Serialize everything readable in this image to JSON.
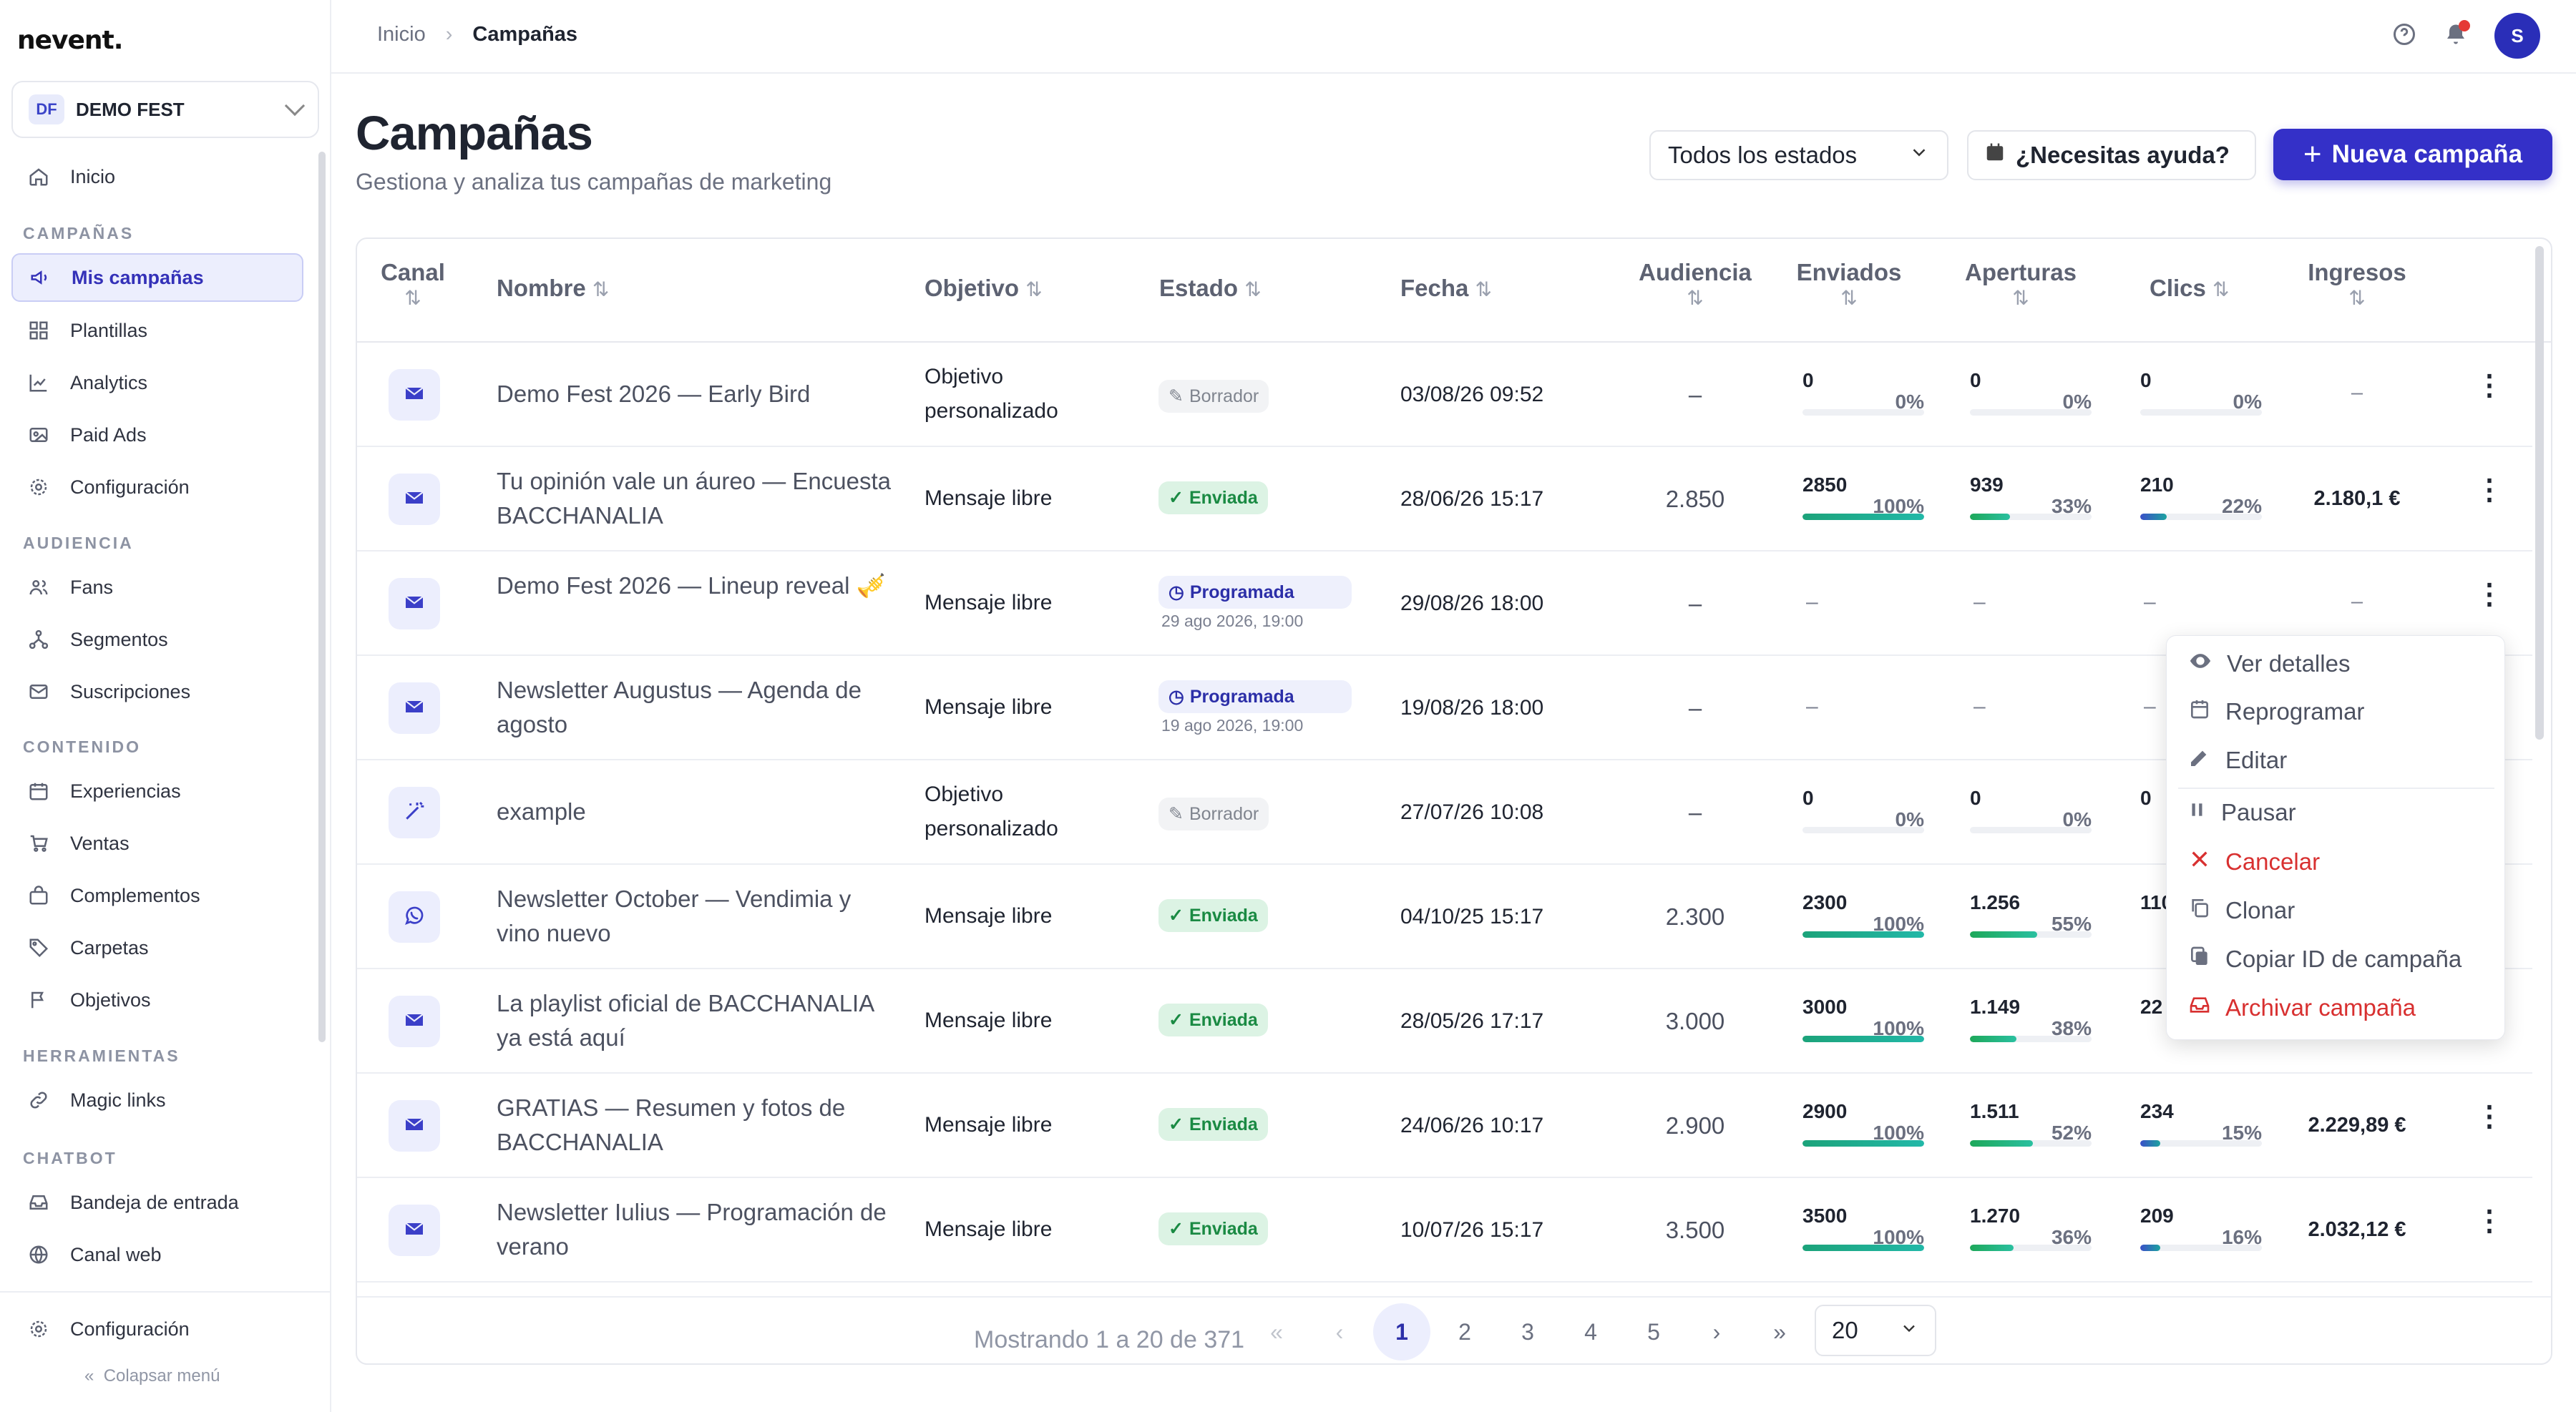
{
  "app": {
    "logo": "nevent."
  },
  "org": {
    "badge": "DF",
    "name": "DEMO FEST"
  },
  "sidebar": {
    "home": "Inicio",
    "sections": [
      "CAMPAÑAS",
      "AUDIENCIA",
      "CONTENIDO",
      "HERRAMIENTAS",
      "CHATBOT"
    ],
    "campaigns": [
      "Mis campañas",
      "Plantillas",
      "Analytics",
      "Paid Ads",
      "Configuración"
    ],
    "audience": [
      "Fans",
      "Segmentos",
      "Suscripciones"
    ],
    "content": [
      "Experiencias",
      "Ventas",
      "Complementos",
      "Carpetas",
      "Objetivos"
    ],
    "tools": [
      "Magic links"
    ],
    "chatbot": [
      "Bandeja de entrada",
      "Canal web"
    ],
    "bottom_config": "Configuración",
    "collapse": "Colapsar menú"
  },
  "breadcrumb": {
    "home": "Inicio",
    "current": "Campañas"
  },
  "header": {
    "title": "Campañas",
    "subtitle": "Gestiona y analiza tus campañas de marketing",
    "filter": "Todos los estados",
    "help": "¿Necesitas ayuda?",
    "new": "Nueva campaña",
    "avatar": "S"
  },
  "columns": [
    "Canal",
    "Nombre",
    "Objetivo",
    "Estado",
    "Fecha",
    "Audiencia",
    "Enviados",
    "Aperturas",
    "Clics",
    "Ingresos"
  ],
  "rows": [
    {
      "channel": "email",
      "name": "Demo Fest 2026 — Early Bird",
      "objective": "Objetivo personalizado",
      "status": "Borrador",
      "date": "03/08/26 09:52",
      "audience": "–",
      "sent": "0",
      "sent_pct": "0%",
      "sent_f": 0,
      "opens": "0",
      "opens_pct": "0%",
      "opens_f": 0,
      "clicks": "0",
      "clicks_pct": "0%",
      "clicks_f": 0,
      "revenue": "–"
    },
    {
      "channel": "email",
      "name": "Tu opinión vale un áureo — Encuesta BACCHANALIA",
      "objective": "Mensaje libre",
      "status": "Enviada",
      "date": "28/06/26 15:17",
      "audience": "2.850",
      "sent": "2850",
      "sent_pct": "100%",
      "sent_f": 1,
      "opens": "939",
      "opens_pct": "33%",
      "opens_f": 0.33,
      "clicks": "210",
      "clicks_pct": "22%",
      "clicks_f": 0.22,
      "revenue": "2.180,1 €"
    },
    {
      "channel": "email",
      "name": "Demo Fest 2026 — Lineup reveal 🎺",
      "objective": "Mensaje libre",
      "status": "Programada",
      "scheduled": "29 ago 2026, 19:00",
      "date": "29/08/26 18:00",
      "audience": "–",
      "sent": "–",
      "opens": "–",
      "clicks": "–",
      "revenue": "–"
    },
    {
      "channel": "email",
      "name": "Newsletter Augustus — Agenda de agosto",
      "objective": "Mensaje libre",
      "status": "Programada",
      "scheduled": "19 ago 2026, 19:00",
      "date": "19/08/26 18:00",
      "audience": "–",
      "sent": "–",
      "opens": "–",
      "clicks": "–",
      "revenue": ""
    },
    {
      "channel": "magic",
      "name": "example",
      "objective": "Objetivo personalizado",
      "status": "Borrador",
      "date": "27/07/26 10:08",
      "audience": "–",
      "sent": "0",
      "sent_pct": "0%",
      "sent_f": 0,
      "opens": "0",
      "opens_pct": "0%",
      "opens_f": 0,
      "clicks": "0",
      "revenue": ""
    },
    {
      "channel": "whatsapp",
      "name": "Newsletter October — Vendimia y vino nuevo",
      "objective": "Mensaje libre",
      "status": "Enviada",
      "date": "04/10/25 15:17",
      "audience": "2.300",
      "sent": "2300",
      "sent_pct": "100%",
      "sent_f": 1,
      "opens": "1.256",
      "opens_pct": "55%",
      "opens_f": 0.55,
      "clicks": "110",
      "revenue": ""
    },
    {
      "channel": "email",
      "name": "La playlist oficial de BACCHANALIA ya está aquí",
      "objective": "Mensaje libre",
      "status": "Enviada",
      "date": "28/05/26 17:17",
      "audience": "3.000",
      "sent": "3000",
      "sent_pct": "100%",
      "sent_f": 1,
      "opens": "1.149",
      "opens_pct": "38%",
      "opens_f": 0.38,
      "clicks": "22",
      "revenue": ""
    },
    {
      "channel": "email",
      "name": "GRATIAS — Resumen y fotos de BACCHANALIA",
      "objective": "Mensaje libre",
      "status": "Enviada",
      "date": "24/06/26 10:17",
      "audience": "2.900",
      "sent": "2900",
      "sent_pct": "100%",
      "sent_f": 1,
      "opens": "1.511",
      "opens_pct": "52%",
      "opens_f": 0.52,
      "clicks": "234",
      "clicks_pct": "15%",
      "clicks_f": 0.15,
      "revenue": "2.229,89 €"
    },
    {
      "channel": "email",
      "name": "Newsletter Iulius — Programación de verano",
      "objective": "Mensaje libre",
      "status": "Enviada",
      "date": "10/07/26 15:17",
      "audience": "3.500",
      "sent": "3500",
      "sent_pct": "100%",
      "sent_f": 1,
      "opens": "1.270",
      "opens_pct": "36%",
      "opens_f": 0.36,
      "clicks": "209",
      "clicks_pct": "16%",
      "clicks_f": 0.16,
      "revenue": "2.032,12 €"
    }
  ],
  "pagination": {
    "showing": "Mostrando 1 a 20 de 371",
    "pages": [
      "1",
      "2",
      "3",
      "4",
      "5"
    ],
    "first": "«",
    "prev": "‹",
    "next": "›",
    "last": "»",
    "per_page": "20"
  },
  "context_menu": {
    "items": [
      "Ver detalles",
      "Reprogramar",
      "Editar",
      "Pausar",
      "Cancelar",
      "Clonar",
      "Copiar ID de campaña",
      "Archivar campaña"
    ]
  },
  "colors": {
    "accent": "#3430c8",
    "success": "#1a8a43",
    "danger": "#d83030"
  }
}
